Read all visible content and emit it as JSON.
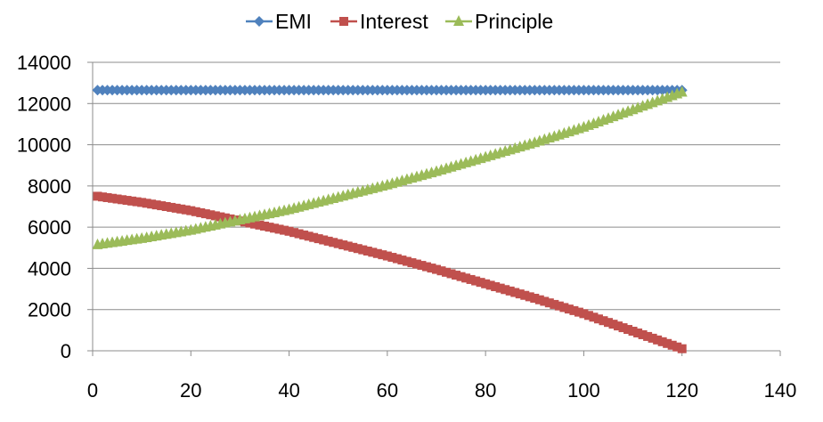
{
  "chart_data": {
    "type": "scatter",
    "style": "lines-with-markers",
    "title": "",
    "xlabel": "",
    "ylabel": "",
    "xlim": [
      0,
      140
    ],
    "ylim": [
      0,
      14000
    ],
    "x_ticks": [
      0,
      20,
      40,
      60,
      80,
      100,
      120,
      140
    ],
    "y_ticks": [
      0,
      2000,
      4000,
      6000,
      8000,
      10000,
      12000,
      14000
    ],
    "grid": "horizontal",
    "legend_position": "top",
    "series": [
      {
        "name": "EMI",
        "color": "#4F81BD",
        "marker": "diamond",
        "points": [
          [
            1,
            12650
          ],
          [
            120,
            12650
          ]
        ]
      },
      {
        "name": "Interest",
        "color": "#C0504D",
        "marker": "square",
        "points": [
          [
            1,
            7500
          ],
          [
            10,
            7200
          ],
          [
            20,
            6800
          ],
          [
            30,
            6300
          ],
          [
            40,
            5800
          ],
          [
            50,
            5200
          ],
          [
            60,
            4600
          ],
          [
            70,
            3950
          ],
          [
            80,
            3250
          ],
          [
            90,
            2550
          ],
          [
            100,
            1800
          ],
          [
            110,
            950
          ],
          [
            120,
            100
          ]
        ]
      },
      {
        "name": "Principle",
        "color": "#9BBB59",
        "marker": "triangle",
        "points": [
          [
            1,
            5150
          ],
          [
            10,
            5450
          ],
          [
            20,
            5850
          ],
          [
            30,
            6350
          ],
          [
            40,
            6850
          ],
          [
            50,
            7450
          ],
          [
            60,
            8050
          ],
          [
            70,
            8700
          ],
          [
            80,
            9400
          ],
          [
            90,
            10100
          ],
          [
            100,
            10850
          ],
          [
            110,
            11700
          ],
          [
            120,
            12550
          ]
        ]
      }
    ]
  }
}
